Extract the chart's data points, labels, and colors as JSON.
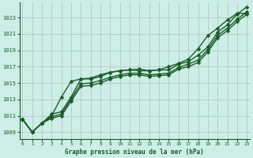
{
  "title": "Graphe pression niveau de la mer (hPa)",
  "bg_color": "#cceee6",
  "grid_color": "#b8ccc8",
  "line_color": "#1a5c28",
  "xlim": [
    -0.3,
    23.3
  ],
  "ylim": [
    1008.2,
    1024.8
  ],
  "yticks": [
    1009,
    1011,
    1013,
    1015,
    1017,
    1019,
    1021,
    1023
  ],
  "xticks": [
    0,
    1,
    2,
    3,
    4,
    5,
    6,
    7,
    8,
    9,
    10,
    11,
    12,
    13,
    14,
    15,
    16,
    17,
    18,
    19,
    20,
    21,
    22,
    23
  ],
  "series": [
    [
      1010.6,
      1009.0,
      1010.1,
      1011.2,
      1011.5,
      1013.3,
      1015.5,
      1015.5,
      1015.8,
      1016.3,
      1016.5,
      1016.6,
      1016.7,
      1016.5,
      1016.6,
      1016.6,
      1017.3,
      1017.6,
      1018.4,
      1019.4,
      1021.2,
      1022.1,
      1023.4,
      1024.3
    ],
    [
      1010.6,
      1009.0,
      1010.1,
      1011.0,
      1013.3,
      1015.2,
      1015.5,
      1015.6,
      1016.0,
      1016.3,
      1016.5,
      1016.6,
      1016.5,
      1016.5,
      1016.6,
      1017.0,
      1017.4,
      1017.9,
      1019.2,
      1020.8,
      1021.7,
      1022.7,
      1023.5,
      1023.5
    ],
    [
      1010.6,
      1009.0,
      1010.1,
      1010.9,
      1011.2,
      1013.1,
      1014.9,
      1015.0,
      1015.3,
      1015.7,
      1016.0,
      1016.2,
      1016.2,
      1016.0,
      1016.1,
      1016.2,
      1016.9,
      1017.3,
      1017.8,
      1019.1,
      1020.8,
      1021.7,
      1022.8,
      1023.7
    ],
    [
      1010.6,
      1009.0,
      1010.1,
      1010.7,
      1011.0,
      1012.8,
      1014.6,
      1014.7,
      1015.0,
      1015.5,
      1015.8,
      1016.0,
      1016.0,
      1015.8,
      1015.9,
      1016.0,
      1016.7,
      1017.0,
      1017.5,
      1018.8,
      1020.5,
      1021.4,
      1022.5,
      1023.4
    ]
  ]
}
